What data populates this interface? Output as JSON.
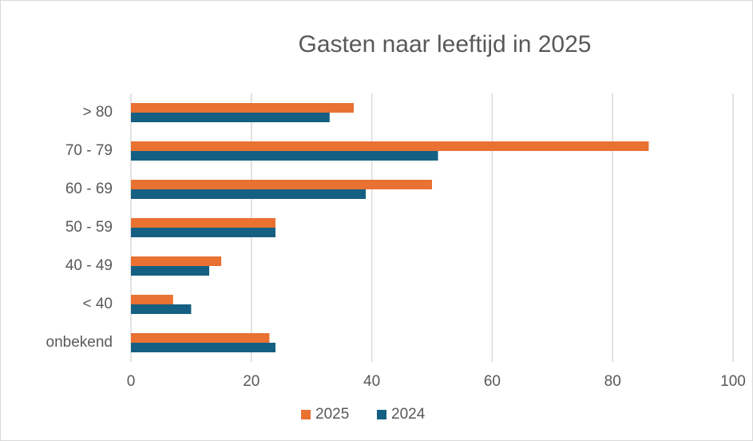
{
  "chart_data": {
    "type": "bar",
    "orientation": "horizontal",
    "title": "Gasten naar leeftijd in 2025",
    "categories": [
      "> 80",
      "70 - 79",
      "60 - 69",
      "50 - 59",
      "40 - 49",
      "< 40",
      "onbekend"
    ],
    "series": [
      {
        "name": "2025",
        "color": "#e97132",
        "values": [
          37,
          86,
          50,
          24,
          15,
          7,
          23
        ]
      },
      {
        "name": "2024",
        "color": "#156082",
        "values": [
          33,
          51,
          39,
          24,
          13,
          10,
          24
        ]
      }
    ],
    "xlim": [
      0,
      100
    ],
    "xticks": [
      0,
      20,
      40,
      60,
      80,
      100
    ],
    "grid": true,
    "legend": "bottom"
  }
}
